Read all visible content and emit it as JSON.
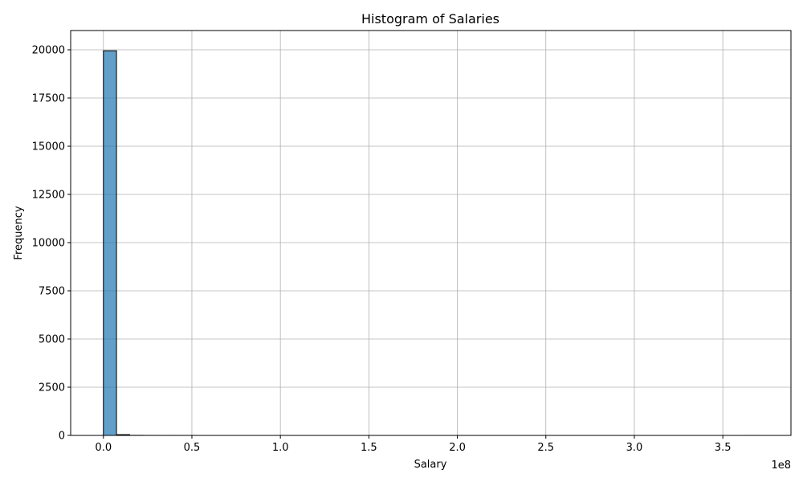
{
  "chart_data": {
    "type": "bar",
    "title": "Histogram of Salaries",
    "xlabel": "Salary",
    "ylabel": "Frequency",
    "x_offset_label": "1e8",
    "xlim": [
      -0.185,
      3.885
    ],
    "ylim": [
      0,
      21000
    ],
    "x_ticks": [
      0.0,
      0.5,
      1.0,
      1.5,
      2.0,
      2.5,
      3.0,
      3.5
    ],
    "x_tick_labels": [
      "0.0",
      "0.5",
      "1.0",
      "1.5",
      "2.0",
      "2.5",
      "3.0",
      "3.5"
    ],
    "y_ticks": [
      0,
      2500,
      5000,
      7500,
      10000,
      12500,
      15000,
      17500,
      20000
    ],
    "y_tick_labels": [
      "0",
      "2500",
      "5000",
      "7500",
      "10000",
      "12500",
      "15000",
      "17500",
      "20000"
    ],
    "grid": true,
    "bar_color": "#1f77b4",
    "bar_alpha": 0.7,
    "edge_color": "#000000",
    "bin_edges": [
      0.0,
      0.074,
      0.148,
      0.222,
      0.296,
      0.37,
      0.444,
      0.518,
      0.592,
      0.666,
      0.74,
      0.814,
      0.888,
      0.962,
      1.036,
      1.11,
      1.184,
      1.258,
      1.332,
      1.406,
      1.48,
      1.554,
      1.628,
      1.702,
      1.776,
      1.85,
      1.924,
      1.998,
      2.072,
      2.146,
      2.22,
      2.294,
      2.368,
      2.442,
      2.516,
      2.59,
      2.664,
      2.738,
      2.812,
      2.886,
      2.96,
      3.034,
      3.108,
      3.182,
      3.256,
      3.33,
      3.404,
      3.478,
      3.552,
      3.626,
      3.7
    ],
    "counts": [
      19950,
      40,
      5,
      2,
      1,
      1,
      1,
      0,
      0,
      0,
      0,
      0,
      0,
      0,
      0,
      0,
      0,
      0,
      0,
      0,
      0,
      0,
      0,
      0,
      0,
      0,
      0,
      0,
      0,
      0,
      0,
      0,
      0,
      0,
      0,
      0,
      0,
      0,
      0,
      0,
      0,
      0,
      0,
      0,
      0,
      0,
      0,
      0,
      0,
      1
    ]
  }
}
